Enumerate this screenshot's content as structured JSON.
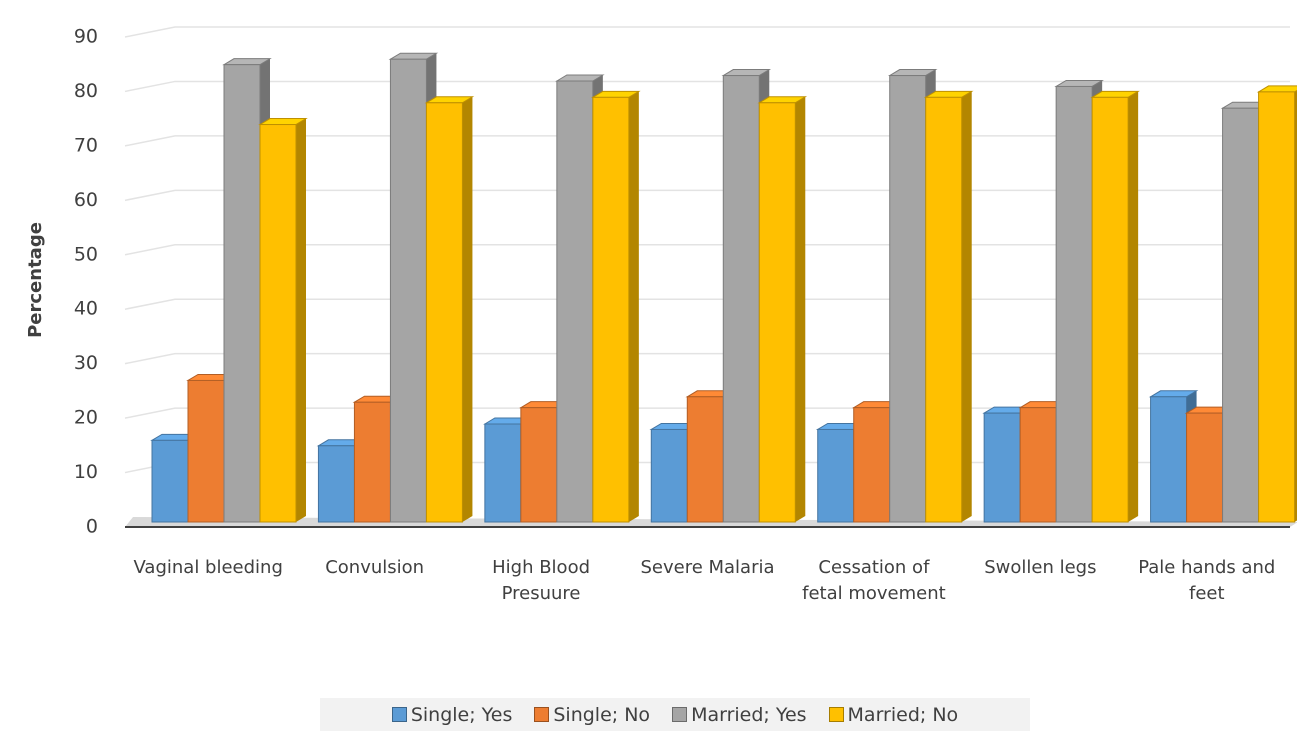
{
  "chart_data": {
    "type": "bar3d",
    "y_label": "Percentage",
    "categories": [
      "Vaginal bleeding",
      "Convulsion",
      "High Blood Presuure",
      "Severe Malaria",
      "Cessation of fetal movement",
      "Swollen legs",
      "Pale hands and feet"
    ],
    "series": [
      {
        "name": "Single; Yes",
        "color": "#5b9bd5",
        "values": [
          15,
          14,
          18,
          17,
          17,
          20,
          23
        ]
      },
      {
        "name": "Single; No",
        "color": "#ed7d31",
        "values": [
          26,
          22,
          21,
          23,
          21,
          21,
          20
        ]
      },
      {
        "name": "Married; Yes",
        "color": "#a5a5a5",
        "values": [
          84,
          85,
          81,
          82,
          82,
          80,
          76
        ]
      },
      {
        "name": "Married; No",
        "color": "#ffc000",
        "values": [
          73,
          77,
          78,
          77,
          78,
          78,
          79
        ]
      }
    ],
    "ylim": [
      0,
      90
    ],
    "yticks": [
      0,
      10,
      20,
      30,
      40,
      50,
      60,
      70,
      80,
      90
    ],
    "grid": true,
    "legend": "bottom"
  }
}
